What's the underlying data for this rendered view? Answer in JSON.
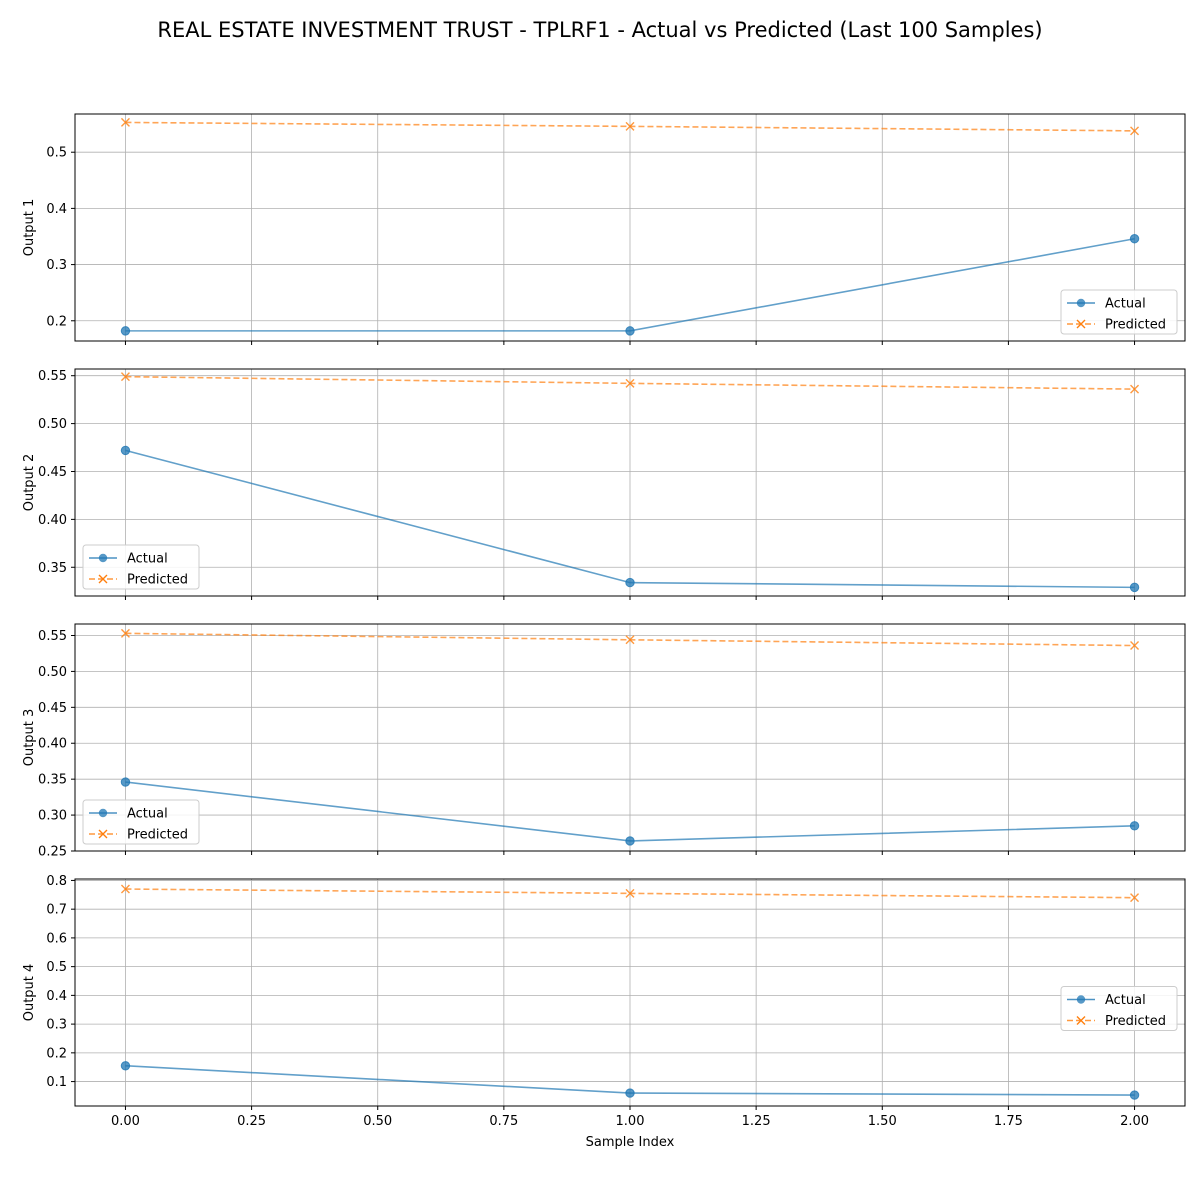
{
  "figure_title": "REAL ESTATE INVESTMENT TRUST - TPLRF1 - Actual vs Predicted (Last 100 Samples)",
  "colors": {
    "actual": "#1f77b4",
    "predicted": "#ff7f0e",
    "grid": "#b0b0b0"
  },
  "chart_data": [
    {
      "type": "line",
      "ylabel": "Output 1",
      "xlabel": "",
      "x": [
        0,
        1,
        2
      ],
      "xlim": [
        -0.1,
        2.1
      ],
      "ylim": [
        0.164,
        0.568
      ],
      "yticks": [
        0.2,
        0.3,
        0.4,
        0.5
      ],
      "ytick_labels": [
        "0.2",
        "0.3",
        "0.4",
        "0.5"
      ],
      "xticks": [
        0,
        0.25,
        0.5,
        0.75,
        1.0,
        1.25,
        1.5,
        1.75,
        2.0
      ],
      "xtick_labels": [],
      "grid": true,
      "legend": "lower-right",
      "series": [
        {
          "name": "Actual",
          "values": [
            0.182,
            0.182,
            0.346
          ]
        },
        {
          "name": "Predicted",
          "values": [
            0.553,
            0.546,
            0.538
          ]
        }
      ]
    },
    {
      "type": "line",
      "ylabel": "Output 2",
      "xlabel": "",
      "x": [
        0,
        1,
        2
      ],
      "xlim": [
        -0.1,
        2.1
      ],
      "ylim": [
        0.32,
        0.557
      ],
      "yticks": [
        0.35,
        0.4,
        0.45,
        0.5,
        0.55
      ],
      "ytick_labels": [
        "0.35",
        "0.40",
        "0.45",
        "0.50",
        "0.55"
      ],
      "xticks": [
        0,
        0.25,
        0.5,
        0.75,
        1.0,
        1.25,
        1.5,
        1.75,
        2.0
      ],
      "xtick_labels": [],
      "grid": true,
      "legend": "lower-left",
      "series": [
        {
          "name": "Actual",
          "values": [
            0.472,
            0.334,
            0.329
          ]
        },
        {
          "name": "Predicted",
          "values": [
            0.549,
            0.542,
            0.536
          ]
        }
      ]
    },
    {
      "type": "line",
      "ylabel": "Output 3",
      "xlabel": "",
      "x": [
        0,
        1,
        2
      ],
      "xlim": [
        -0.1,
        2.1
      ],
      "ylim": [
        0.25,
        0.566
      ],
      "yticks": [
        0.25,
        0.3,
        0.35,
        0.4,
        0.45,
        0.5,
        0.55
      ],
      "ytick_labels": [
        "0.25",
        "0.30",
        "0.35",
        "0.40",
        "0.45",
        "0.50",
        "0.55"
      ],
      "xticks": [
        0,
        0.25,
        0.5,
        0.75,
        1.0,
        1.25,
        1.5,
        1.75,
        2.0
      ],
      "xtick_labels": [],
      "grid": true,
      "legend": "lower-left",
      "series": [
        {
          "name": "Actual",
          "values": [
            0.346,
            0.264,
            0.285
          ]
        },
        {
          "name": "Predicted",
          "values": [
            0.553,
            0.544,
            0.536
          ]
        }
      ]
    },
    {
      "type": "line",
      "ylabel": "Output 4",
      "xlabel": "Sample Index",
      "x": [
        0,
        1,
        2
      ],
      "xlim": [
        -0.1,
        2.1
      ],
      "ylim": [
        0.015,
        0.805
      ],
      "yticks": [
        0.1,
        0.2,
        0.3,
        0.4,
        0.5,
        0.6,
        0.7,
        0.8
      ],
      "ytick_labels": [
        "0.1",
        "0.2",
        "0.3",
        "0.4",
        "0.5",
        "0.6",
        "0.7",
        "0.8"
      ],
      "xticks": [
        0,
        0.25,
        0.5,
        0.75,
        1.0,
        1.25,
        1.5,
        1.75,
        2.0
      ],
      "xtick_labels": [
        "0.00",
        "0.25",
        "0.50",
        "0.75",
        "1.00",
        "1.25",
        "1.50",
        "1.75",
        "2.00"
      ],
      "grid": true,
      "legend": "center-right",
      "series": [
        {
          "name": "Actual",
          "values": [
            0.155,
            0.06,
            0.053
          ]
        },
        {
          "name": "Predicted",
          "values": [
            0.77,
            0.755,
            0.74
          ]
        }
      ]
    }
  ]
}
